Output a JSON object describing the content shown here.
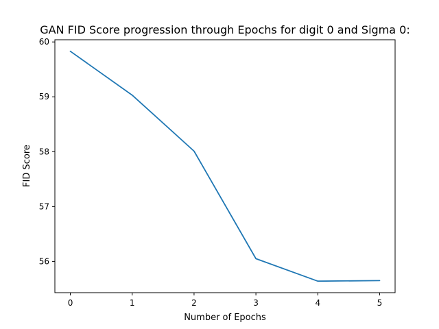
{
  "chart_data": {
    "type": "line",
    "title": "GAN FID Score progression through Epochs for digit 0 and Sigma 0:",
    "xlabel": "Number of Epochs",
    "ylabel": "FID Score",
    "x": [
      0,
      1,
      2,
      3,
      4,
      5
    ],
    "series": [
      {
        "values": [
          59.83,
          59.03,
          58.01,
          56.05,
          55.64,
          55.65
        ],
        "color": "#1f77b4"
      }
    ],
    "xticks": [
      "0",
      "1",
      "2",
      "3",
      "4",
      "5"
    ],
    "yticks": [
      "56",
      "57",
      "58",
      "59",
      "60"
    ],
    "xlim": [
      -0.25,
      5.25
    ],
    "ylim": [
      55.43,
      60.04
    ],
    "grid": false,
    "legend": "none"
  }
}
